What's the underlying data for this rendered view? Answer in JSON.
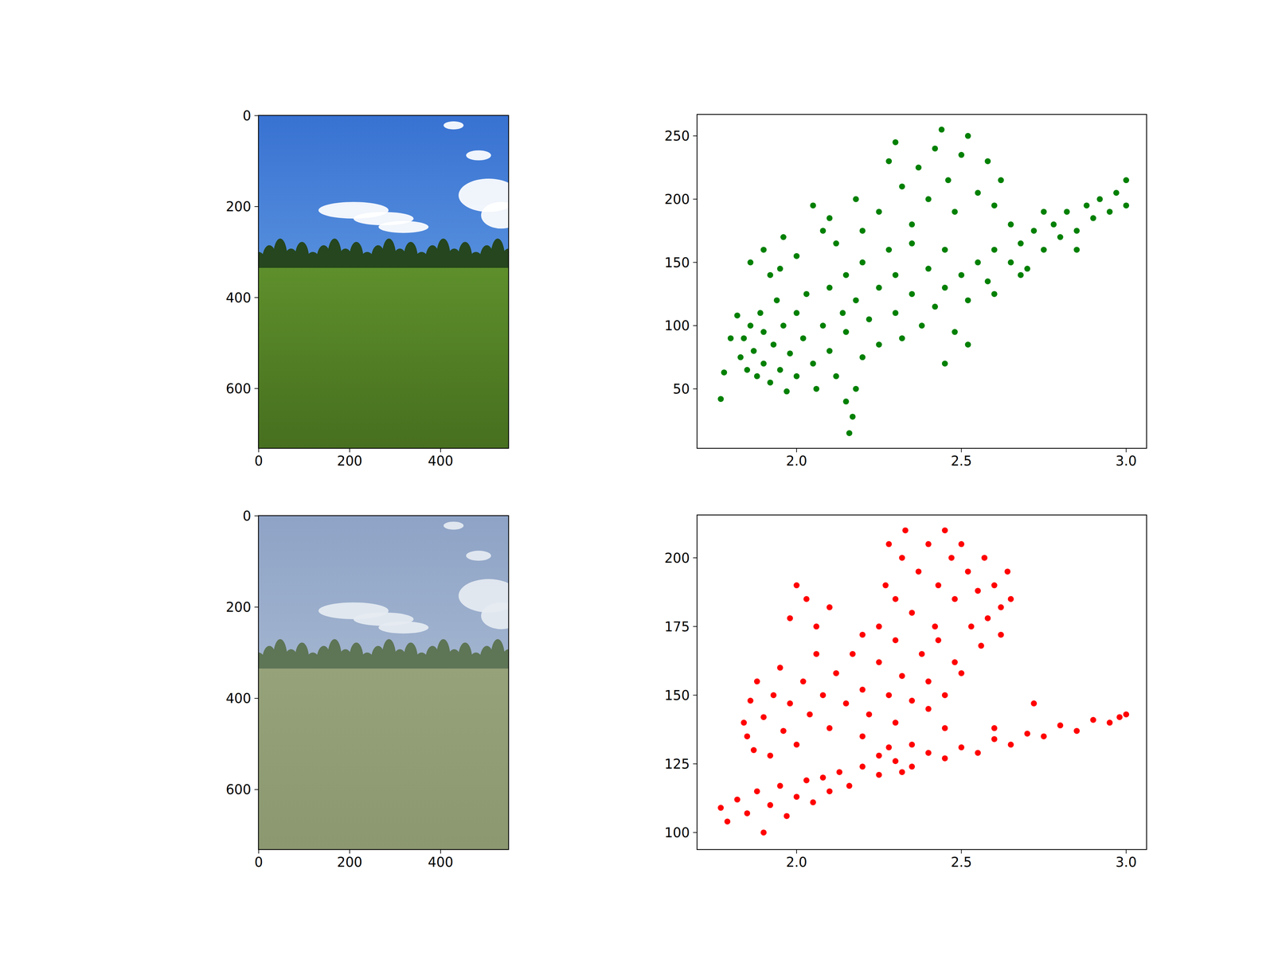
{
  "chart_data": [
    {
      "type": "image",
      "xlim": [
        -0.5,
        549.5
      ],
      "ylim": [
        731.5,
        -0.5
      ],
      "xticks": [
        0,
        200,
        400
      ],
      "yticks": [
        0,
        200,
        400,
        600
      ]
    },
    {
      "type": "scatter",
      "color": "green",
      "xlim": [
        1.698,
        3.062
      ],
      "ylim": [
        3,
        267
      ],
      "xticks": [
        {
          "value": 2,
          "label": "2.0"
        },
        2.5,
        {
          "value": 3,
          "label": "3.0"
        }
      ],
      "yticks": [
        50,
        100,
        150,
        200,
        250
      ],
      "x": [
        1.83,
        1.84,
        1.85,
        1.86,
        1.87,
        1.88,
        1.89,
        1.9,
        1.9,
        1.92,
        1.93,
        1.94,
        1.95,
        1.96,
        1.97,
        1.98,
        2.0,
        2.0,
        2.02,
        2.03,
        2.05,
        2.06,
        2.08,
        2.1,
        2.1,
        2.12,
        2.14,
        2.15,
        2.15,
        2.18,
        2.2,
        2.2,
        2.22,
        2.25,
        2.25,
        2.28,
        2.3,
        2.3,
        2.32,
        2.35,
        2.35,
        2.38,
        2.4,
        2.42,
        2.45,
        2.45,
        2.48,
        2.5,
        2.52,
        2.55,
        2.58,
        2.6,
        2.6,
        2.65,
        2.68,
        2.7,
        2.72,
        2.75,
        2.78,
        2.8,
        2.82,
        2.85,
        2.88,
        2.9,
        2.92,
        2.95,
        2.97,
        3.0,
        2.85,
        2.75,
        2.65,
        2.6,
        2.25,
        2.28,
        2.3,
        2.32,
        2.35,
        2.37,
        2.4,
        2.42,
        2.44,
        2.46,
        2.48,
        2.5,
        2.52,
        2.55,
        2.58,
        2.62,
        2.2,
        2.18,
        2.12,
        2.1,
        1.86,
        1.9,
        1.92,
        1.96,
        2.0,
        2.05,
        1.95,
        2.08,
        2.16,
        2.17,
        2.15,
        2.18,
        1.77,
        1.78,
        1.8,
        1.82,
        2.52,
        2.45,
        3.0,
        2.68
      ],
      "y": [
        75,
        90,
        65,
        100,
        80,
        60,
        110,
        95,
        70,
        55,
        85,
        120,
        65,
        100,
        48,
        78,
        110,
        60,
        90,
        125,
        70,
        50,
        100,
        130,
        80,
        60,
        110,
        140,
        95,
        120,
        75,
        150,
        105,
        130,
        85,
        160,
        110,
        140,
        90,
        125,
        165,
        100,
        145,
        115,
        130,
        160,
        95,
        140,
        120,
        150,
        135,
        160,
        125,
        150,
        165,
        145,
        175,
        160,
        180,
        170,
        190,
        175,
        195,
        185,
        200,
        190,
        205,
        195,
        160,
        190,
        180,
        195,
        190,
        230,
        245,
        210,
        180,
        225,
        200,
        240,
        255,
        215,
        190,
        235,
        250,
        205,
        230,
        215,
        175,
        200,
        165,
        185,
        150,
        160,
        140,
        170,
        155,
        195,
        145,
        175,
        15,
        28,
        40,
        50,
        42,
        63,
        90,
        108,
        85,
        70,
        215,
        140
      ]
    },
    {
      "type": "image",
      "xlim": [
        -0.5,
        549.5
      ],
      "ylim": [
        731.5,
        -0.5
      ],
      "xticks": [
        0,
        200,
        400
      ],
      "yticks": [
        0,
        200,
        400,
        600
      ]
    },
    {
      "type": "scatter",
      "color": "red",
      "xlim": [
        1.698,
        3.062
      ],
      "ylim": [
        93.8,
        215.6
      ],
      "xticks": [
        {
          "value": 2,
          "label": "2.0"
        },
        2.5,
        {
          "value": 3,
          "label": "3.0"
        }
      ],
      "yticks": [
        100,
        125,
        150,
        175,
        200
      ],
      "x": [
        1.84,
        1.85,
        1.86,
        1.87,
        1.88,
        1.9,
        1.92,
        1.93,
        1.95,
        1.96,
        1.98,
        2.0,
        2.02,
        2.04,
        2.06,
        2.08,
        2.1,
        2.12,
        2.15,
        2.17,
        2.2,
        2.22,
        2.25,
        2.28,
        2.3,
        2.32,
        2.35,
        2.38,
        2.4,
        2.43,
        2.45,
        2.48,
        2.5,
        1.98,
        2.0,
        2.03,
        2.06,
        2.1,
        2.25,
        2.27,
        2.28,
        2.3,
        2.32,
        2.33,
        2.35,
        2.37,
        2.4,
        2.42,
        2.43,
        2.45,
        2.47,
        2.48,
        2.5,
        2.52,
        2.53,
        2.55,
        2.57,
        2.58,
        2.6,
        2.62,
        2.64,
        2.65,
        2.56,
        2.62,
        2.2,
        2.2,
        2.25,
        2.3,
        2.35,
        2.4,
        2.45,
        2.32,
        1.77,
        1.79,
        1.82,
        1.85,
        1.88,
        1.9,
        1.92,
        1.95,
        1.97,
        2.0,
        2.03,
        2.05,
        2.08,
        2.1,
        2.13,
        2.16,
        2.2,
        2.25,
        2.3,
        2.35,
        2.4,
        2.45,
        2.5,
        2.55,
        2.6,
        2.65,
        2.7,
        2.75,
        2.8,
        2.85,
        2.9,
        2.95,
        3.0,
        2.98,
        2.72,
        2.6,
        2.28
      ],
      "y": [
        140,
        135,
        148,
        130,
        155,
        142,
        128,
        150,
        160,
        137,
        147,
        132,
        155,
        143,
        165,
        150,
        138,
        158,
        147,
        165,
        152,
        143,
        162,
        150,
        170,
        157,
        148,
        165,
        155,
        170,
        150,
        162,
        158,
        178,
        190,
        185,
        175,
        182,
        175,
        190,
        205,
        185,
        200,
        210,
        180,
        195,
        205,
        175,
        190,
        210,
        200,
        185,
        205,
        195,
        175,
        188,
        200,
        178,
        190,
        182,
        195,
        185,
        168,
        172,
        172,
        135,
        128,
        140,
        132,
        145,
        138,
        122,
        109,
        104,
        112,
        107,
        115,
        100,
        110,
        117,
        106,
        113,
        119,
        111,
        120,
        115,
        122,
        117,
        124,
        121,
        126,
        124,
        129,
        127,
        131,
        129,
        134,
        132,
        136,
        135,
        139,
        137,
        141,
        140,
        143,
        142,
        147,
        138,
        131
      ]
    }
  ]
}
